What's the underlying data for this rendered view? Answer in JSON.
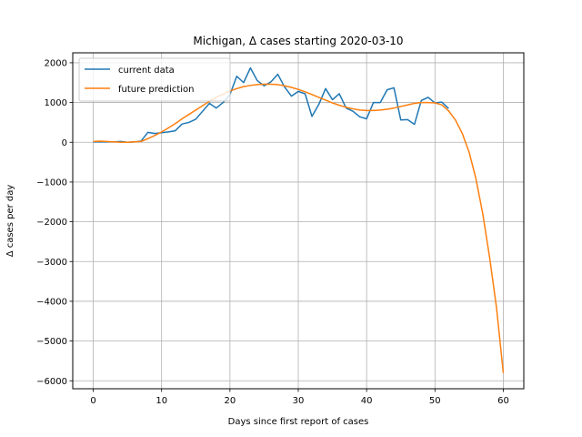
{
  "chart_data": {
    "type": "line",
    "title": "Michigan, Δ cases starting 2020-03-10",
    "xlabel": "Days since first report of cases",
    "ylabel": "Δ cases per day",
    "xlim": [
      -3,
      63
    ],
    "ylim": [
      -6200,
      2250
    ],
    "xticks": [
      0,
      10,
      20,
      30,
      40,
      50,
      60
    ],
    "yticks": [
      2000,
      1000,
      0,
      -1000,
      -2000,
      -3000,
      -4000,
      -5000,
      -6000
    ],
    "xtick_labels": [
      "0",
      "10",
      "20",
      "30",
      "40",
      "50",
      "60"
    ],
    "ytick_labels": [
      "2000",
      "1000",
      "0",
      "−1000",
      "−2000",
      "−3000",
      "−4000",
      "−5000",
      "−6000"
    ],
    "grid": true,
    "legend_position": "top-left",
    "series": [
      {
        "name": "current data",
        "color": "#1f77b4",
        "x": [
          0,
          1,
          2,
          3,
          4,
          5,
          6,
          7,
          8,
          9,
          10,
          11,
          12,
          13,
          14,
          15,
          16,
          17,
          18,
          19,
          20,
          21,
          22,
          23,
          24,
          25,
          26,
          27,
          28,
          29,
          30,
          31,
          32,
          33,
          34,
          35,
          36,
          37,
          38,
          39,
          40,
          41,
          42,
          43,
          44,
          45,
          46,
          47,
          48,
          49,
          50,
          51,
          52
        ],
        "y": [
          10,
          10,
          10,
          10,
          20,
          0,
          10,
          30,
          250,
          220,
          240,
          260,
          290,
          460,
          500,
          580,
          780,
          980,
          860,
          1000,
          1200,
          1660,
          1500,
          1870,
          1550,
          1420,
          1520,
          1710,
          1390,
          1160,
          1280,
          1220,
          650,
          950,
          1350,
          1070,
          1220,
          860,
          780,
          640,
          590,
          1000,
          1000,
          1320,
          1370,
          560,
          570,
          450,
          1050,
          1130,
          990,
          1010,
          850
        ]
      },
      {
        "name": "future prediction",
        "color": "#ff7f0e",
        "x": [
          0,
          1,
          2,
          3,
          4,
          5,
          6,
          7,
          8,
          9,
          10,
          11,
          12,
          13,
          14,
          15,
          16,
          17,
          18,
          19,
          20,
          21,
          22,
          23,
          24,
          25,
          26,
          27,
          28,
          29,
          30,
          31,
          32,
          33,
          34,
          35,
          36,
          37,
          38,
          39,
          40,
          41,
          42,
          43,
          44,
          45,
          46,
          47,
          48,
          49,
          50,
          51,
          52,
          53,
          54,
          55,
          56,
          57,
          58,
          59,
          60
        ],
        "y": [
          20,
          30,
          20,
          10,
          0,
          0,
          10,
          20,
          90,
          170,
          260,
          360,
          470,
          590,
          700,
          810,
          920,
          1030,
          1130,
          1210,
          1290,
          1350,
          1400,
          1430,
          1450,
          1460,
          1460,
          1450,
          1420,
          1380,
          1330,
          1270,
          1200,
          1130,
          1060,
          990,
          930,
          880,
          840,
          810,
          800,
          800,
          810,
          830,
          860,
          900,
          940,
          980,
          1000,
          1000,
          990,
          940,
          790,
          560,
          220,
          -250,
          -920,
          -1800,
          -2900,
          -4150,
          -5800
        ]
      }
    ]
  }
}
